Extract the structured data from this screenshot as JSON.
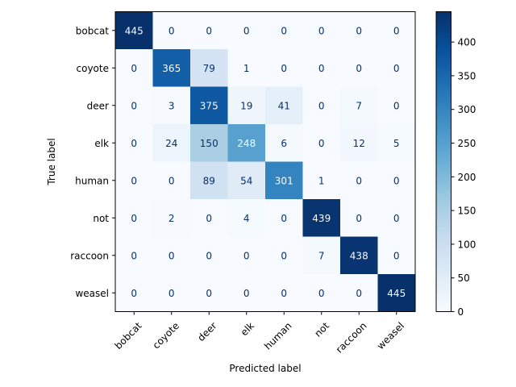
{
  "chart_data": {
    "type": "heatmap",
    "title": "",
    "xlabel": "Predicted label",
    "ylabel": "True label",
    "x_categories": [
      "bobcat",
      "coyote",
      "deer",
      "elk",
      "human",
      "not",
      "raccoon",
      "weasel"
    ],
    "y_categories": [
      "bobcat",
      "coyote",
      "deer",
      "elk",
      "human",
      "not",
      "raccoon",
      "weasel"
    ],
    "matrix": [
      [
        445,
        0,
        0,
        0,
        0,
        0,
        0,
        0
      ],
      [
        0,
        365,
        79,
        1,
        0,
        0,
        0,
        0
      ],
      [
        0,
        3,
        375,
        19,
        41,
        0,
        7,
        0
      ],
      [
        0,
        24,
        150,
        248,
        6,
        0,
        12,
        5
      ],
      [
        0,
        0,
        89,
        54,
        301,
        1,
        0,
        0
      ],
      [
        0,
        2,
        0,
        4,
        0,
        439,
        0,
        0
      ],
      [
        0,
        0,
        0,
        0,
        0,
        7,
        438,
        0
      ],
      [
        0,
        0,
        0,
        0,
        0,
        0,
        0,
        445
      ]
    ],
    "colormap": "Blues",
    "color_range": [
      0,
      445
    ],
    "colorbar_ticks": [
      0,
      50,
      100,
      150,
      200,
      250,
      300,
      350,
      400
    ],
    "colors": {
      "low": "#f7fbff",
      "high": "#08306b",
      "text_light": "#f7fbff",
      "text_dark": "#08306b"
    }
  }
}
